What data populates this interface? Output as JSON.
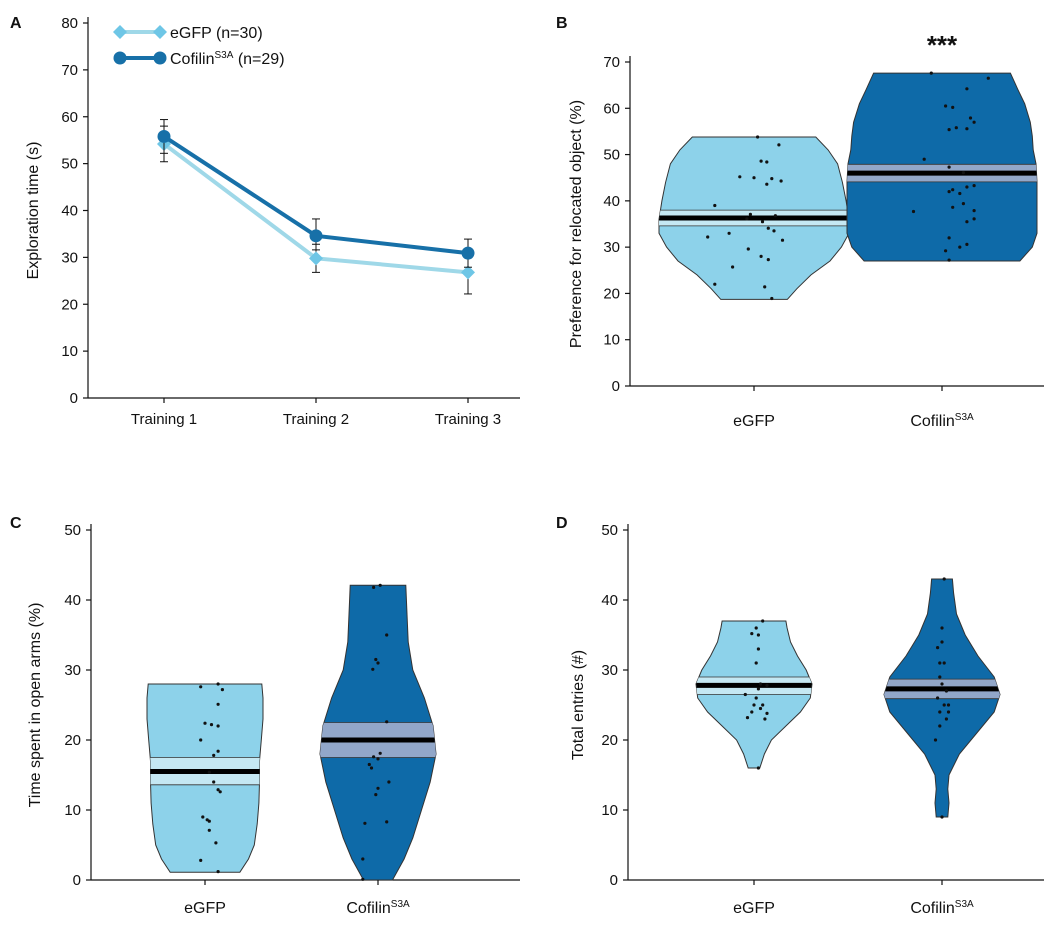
{
  "chart_data": [
    {
      "panel_label": "A",
      "type": "line",
      "ylabel": "Exploration time (s)",
      "xlabel": "",
      "categories": [
        "Training 1",
        "Training 2",
        "Training 3"
      ],
      "ylim": [
        0,
        80
      ],
      "yticks": [
        0,
        10,
        20,
        30,
        40,
        50,
        60,
        70,
        80
      ],
      "legend_position": "top-left",
      "series": [
        {
          "legend_label": "eGFP (n=30)",
          "legend_parts": {
            "base": "eGFP",
            "sup": "",
            "suffix": " (n=30)"
          },
          "marker": "diamond",
          "color": "#9FD8E8",
          "marker_color": "#6EC6E6",
          "values": [
            54.2,
            29.8,
            26.8
          ],
          "err_low": [
            3.8,
            3.0,
            4.6
          ],
          "err_high": [
            3.8,
            3.0,
            4.6
          ]
        },
        {
          "legend_label": "CofilinS3A (n=29)",
          "legend_parts": {
            "base": "Cofilin",
            "sup": "S3A",
            "suffix": " (n=29)"
          },
          "marker": "circle",
          "color": "#1770A8",
          "marker_color": "#1770A8",
          "values": [
            55.8,
            34.6,
            30.9
          ],
          "err_low": [
            3.6,
            3.0,
            3.0
          ],
          "err_high": [
            3.6,
            3.6,
            3.0
          ]
        }
      ]
    },
    {
      "panel_label": "B",
      "type": "violin",
      "ylabel": "Preference for relocated object (%)",
      "ylim": [
        0,
        70
      ],
      "yticks": [
        0,
        10,
        20,
        30,
        40,
        50,
        60,
        70
      ],
      "annotation": "***",
      "groups": [
        {
          "label": "eGFP",
          "label_parts": {
            "base": "eGFP",
            "sup": ""
          },
          "color": "#8DD2EA",
          "band_color": "#C5E8F3",
          "mean": 36.3,
          "ci_low": 34.6,
          "ci_high": 38.0,
          "min": 18.7,
          "max": 53.8,
          "profile": [
            [
              18.7,
              0.35
            ],
            [
              21,
              0.45
            ],
            [
              24,
              0.6
            ],
            [
              27,
              0.8
            ],
            [
              30,
              0.92
            ],
            [
              33,
              1.0
            ],
            [
              36,
              1.0
            ],
            [
              40,
              0.97
            ],
            [
              44,
              0.93
            ],
            [
              48,
              0.88
            ],
            [
              51,
              0.78
            ],
            [
              53.8,
              0.65
            ]
          ],
          "points": [
            [
              53.8,
              0.05
            ],
            [
              52.1,
              0.35
            ],
            [
              48.6,
              0.1
            ],
            [
              48.4,
              0.18
            ],
            [
              45.2,
              -0.2
            ],
            [
              45.0,
              0.0
            ],
            [
              44.8,
              0.25
            ],
            [
              44.3,
              0.38
            ],
            [
              43.6,
              0.18
            ],
            [
              39.0,
              -0.55
            ],
            [
              37.1,
              -0.05
            ],
            [
              36.8,
              0.3
            ],
            [
              36.1,
              -0.1
            ],
            [
              35.5,
              0.12
            ],
            [
              34.1,
              0.2
            ],
            [
              33.5,
              0.28
            ],
            [
              33.0,
              -0.35
            ],
            [
              32.2,
              -0.65
            ],
            [
              31.5,
              0.4
            ],
            [
              29.6,
              -0.08
            ],
            [
              28.0,
              0.1
            ],
            [
              27.3,
              0.2
            ],
            [
              25.7,
              -0.3
            ],
            [
              22.0,
              -0.55
            ],
            [
              21.4,
              0.15
            ],
            [
              18.9,
              0.25
            ]
          ]
        },
        {
          "label": "CofilinS3A",
          "label_parts": {
            "base": "Cofilin",
            "sup": "S3A"
          },
          "color": "#0E6AA8",
          "band_color": "#92A7C9",
          "mean": 46.0,
          "ci_low": 44.1,
          "ci_high": 47.9,
          "min": 27.0,
          "max": 67.6,
          "profile": [
            [
              27,
              0.82
            ],
            [
              30,
              0.95
            ],
            [
              33,
              1.0
            ],
            [
              36,
              1.0
            ],
            [
              40,
              1.0
            ],
            [
              44,
              1.0
            ],
            [
              48,
              0.99
            ],
            [
              51,
              0.96
            ],
            [
              54,
              0.95
            ],
            [
              57,
              0.93
            ],
            [
              61,
              0.87
            ],
            [
              64,
              0.8
            ],
            [
              67.6,
              0.72
            ]
          ],
          "points": [
            [
              67.6,
              -0.15
            ],
            [
              66.5,
              0.65
            ],
            [
              64.2,
              0.35
            ],
            [
              60.5,
              0.05
            ],
            [
              60.2,
              0.15
            ],
            [
              57.9,
              0.4
            ],
            [
              57.0,
              0.45
            ],
            [
              55.8,
              0.2
            ],
            [
              55.6,
              0.35
            ],
            [
              55.4,
              0.1
            ],
            [
              49.0,
              -0.25
            ],
            [
              47.3,
              0.1
            ],
            [
              46.1,
              0.3
            ],
            [
              43.3,
              0.45
            ],
            [
              43.0,
              0.35
            ],
            [
              42.4,
              0.15
            ],
            [
              42.0,
              0.1
            ],
            [
              41.6,
              0.25
            ],
            [
              39.4,
              0.3
            ],
            [
              38.6,
              0.15
            ],
            [
              37.9,
              0.45
            ],
            [
              37.7,
              -0.4
            ],
            [
              36.1,
              0.45
            ],
            [
              35.5,
              0.35
            ],
            [
              32.0,
              0.1
            ],
            [
              30.6,
              0.35
            ],
            [
              30.0,
              0.25
            ],
            [
              29.2,
              0.05
            ],
            [
              27.2,
              0.1
            ]
          ]
        }
      ]
    },
    {
      "panel_label": "C",
      "type": "violin",
      "ylabel": "Time spent in open arms (%)",
      "ylim": [
        0,
        50
      ],
      "yticks": [
        0,
        10,
        20,
        30,
        40,
        50
      ],
      "groups": [
        {
          "label": "eGFP",
          "label_parts": {
            "base": "eGFP",
            "sup": ""
          },
          "color": "#8DD2EA",
          "band_color": "#C5E8F3",
          "mean": 15.5,
          "ci_low": 13.6,
          "ci_high": 17.5,
          "min": 1.1,
          "max": 28.0,
          "profile": [
            [
              1.1,
              0.6
            ],
            [
              3,
              0.75
            ],
            [
              5,
              0.85
            ],
            [
              8,
              0.9
            ],
            [
              11,
              0.93
            ],
            [
              14,
              0.94
            ],
            [
              17,
              0.94
            ],
            [
              20,
              0.97
            ],
            [
              23,
              1.0
            ],
            [
              26,
              1.0
            ],
            [
              28,
              0.98
            ]
          ],
          "points": [
            [
              28.0,
              0.3
            ],
            [
              27.6,
              -0.1
            ],
            [
              27.2,
              0.4
            ],
            [
              25.1,
              0.3
            ],
            [
              22.4,
              0.0
            ],
            [
              22.2,
              0.15
            ],
            [
              22.0,
              0.3
            ],
            [
              20.0,
              -0.1
            ],
            [
              18.4,
              0.3
            ],
            [
              17.8,
              0.2
            ],
            [
              15.4,
              0.1
            ],
            [
              14.0,
              0.2
            ],
            [
              12.9,
              0.3
            ],
            [
              12.6,
              0.35
            ],
            [
              9.0,
              -0.05
            ],
            [
              8.6,
              0.05
            ],
            [
              8.4,
              0.1
            ],
            [
              7.1,
              0.1
            ],
            [
              5.3,
              0.25
            ],
            [
              2.8,
              -0.1
            ],
            [
              1.2,
              0.3
            ]
          ]
        },
        {
          "label": "CofilinS3A",
          "label_parts": {
            "base": "Cofilin",
            "sup": "S3A"
          },
          "color": "#0E6AA8",
          "band_color": "#92A7C9",
          "mean": 20.0,
          "ci_low": 17.5,
          "ci_high": 22.5,
          "min": 0.0,
          "max": 42.1,
          "profile": [
            [
              0,
              0.25
            ],
            [
              3,
              0.45
            ],
            [
              6,
              0.6
            ],
            [
              10,
              0.75
            ],
            [
              14,
              0.9
            ],
            [
              18,
              1.0
            ],
            [
              22,
              0.95
            ],
            [
              26,
              0.8
            ],
            [
              30,
              0.6
            ],
            [
              34,
              0.52
            ],
            [
              38,
              0.5
            ],
            [
              42.1,
              0.48
            ]
          ],
          "points": [
            [
              42.1,
              0.05
            ],
            [
              41.8,
              -0.1
            ],
            [
              35.0,
              0.2
            ],
            [
              31.5,
              -0.05
            ],
            [
              31.0,
              0.0
            ],
            [
              30.1,
              -0.12
            ],
            [
              22.6,
              0.2
            ],
            [
              18.1,
              0.05
            ],
            [
              17.6,
              -0.1
            ],
            [
              17.3,
              0.0
            ],
            [
              16.5,
              -0.2
            ],
            [
              16.0,
              -0.15
            ],
            [
              14.0,
              0.25
            ],
            [
              13.1,
              0.0
            ],
            [
              12.2,
              -0.05
            ],
            [
              8.3,
              0.2
            ],
            [
              8.1,
              -0.3
            ],
            [
              3.0,
              -0.35
            ],
            [
              0.1,
              -0.35
            ]
          ]
        }
      ]
    },
    {
      "panel_label": "D",
      "type": "violin",
      "ylabel": "Total entries (#)",
      "ylim": [
        0,
        50
      ],
      "yticks": [
        0,
        10,
        20,
        30,
        40,
        50
      ],
      "groups": [
        {
          "label": "eGFP",
          "label_parts": {
            "base": "eGFP",
            "sup": ""
          },
          "color": "#8DD2EA",
          "band_color": "#C5E8F3",
          "mean": 27.8,
          "ci_low": 26.5,
          "ci_high": 29.0,
          "min": 16.0,
          "max": 37.0,
          "profile": [
            [
              16,
              0.1
            ],
            [
              18,
              0.18
            ],
            [
              20,
              0.3
            ],
            [
              22,
              0.55
            ],
            [
              24,
              0.8
            ],
            [
              26,
              0.97
            ],
            [
              28,
              1.0
            ],
            [
              30,
              0.9
            ],
            [
              32,
              0.75
            ],
            [
              34,
              0.63
            ],
            [
              36,
              0.57
            ],
            [
              37,
              0.55
            ]
          ],
          "points": [
            [
              37.0,
              0.2
            ],
            [
              36.0,
              0.05
            ],
            [
              35.2,
              -0.05
            ],
            [
              35.0,
              0.1
            ],
            [
              33.0,
              0.1
            ],
            [
              31.0,
              0.05
            ],
            [
              28.0,
              0.15
            ],
            [
              27.8,
              0.3
            ],
            [
              27.3,
              0.1
            ],
            [
              26.5,
              -0.2
            ],
            [
              26.0,
              0.05
            ],
            [
              25.0,
              0.0
            ],
            [
              25.0,
              0.2
            ],
            [
              24.5,
              0.15
            ],
            [
              24.0,
              -0.05
            ],
            [
              23.8,
              0.3
            ],
            [
              23.2,
              -0.15
            ],
            [
              23.0,
              0.25
            ],
            [
              16.0,
              0.1
            ]
          ]
        },
        {
          "label": "CofilinS3A",
          "label_parts": {
            "base": "Cofilin",
            "sup": "S3A"
          },
          "color": "#0E6AA8",
          "band_color": "#92A7C9",
          "mean": 27.3,
          "ci_low": 25.9,
          "ci_high": 28.7,
          "min": 9.0,
          "max": 43.0,
          "profile": [
            [
              9,
              0.1
            ],
            [
              11,
              0.12
            ],
            [
              13,
              0.1
            ],
            [
              15,
              0.12
            ],
            [
              18,
              0.3
            ],
            [
              21,
              0.6
            ],
            [
              24,
              0.9
            ],
            [
              26.5,
              1.0
            ],
            [
              29,
              0.9
            ],
            [
              32,
              0.62
            ],
            [
              35,
              0.4
            ],
            [
              38,
              0.25
            ],
            [
              41,
              0.2
            ],
            [
              43,
              0.18
            ]
          ],
          "points": [
            [
              43.0,
              0.05
            ],
            [
              36.0,
              0.0
            ],
            [
              34.0,
              0.0
            ],
            [
              33.2,
              -0.1
            ],
            [
              31.0,
              -0.05
            ],
            [
              31.0,
              0.05
            ],
            [
              29.0,
              -0.05
            ],
            [
              28.0,
              0.0
            ],
            [
              27.0,
              0.1
            ],
            [
              26.0,
              -0.1
            ],
            [
              25.0,
              0.05
            ],
            [
              25.0,
              0.15
            ],
            [
              24.0,
              -0.05
            ],
            [
              24.0,
              0.15
            ],
            [
              23.0,
              0.1
            ],
            [
              22.0,
              -0.05
            ],
            [
              20.0,
              -0.15
            ],
            [
              9.0,
              0.0
            ]
          ]
        }
      ]
    }
  ]
}
